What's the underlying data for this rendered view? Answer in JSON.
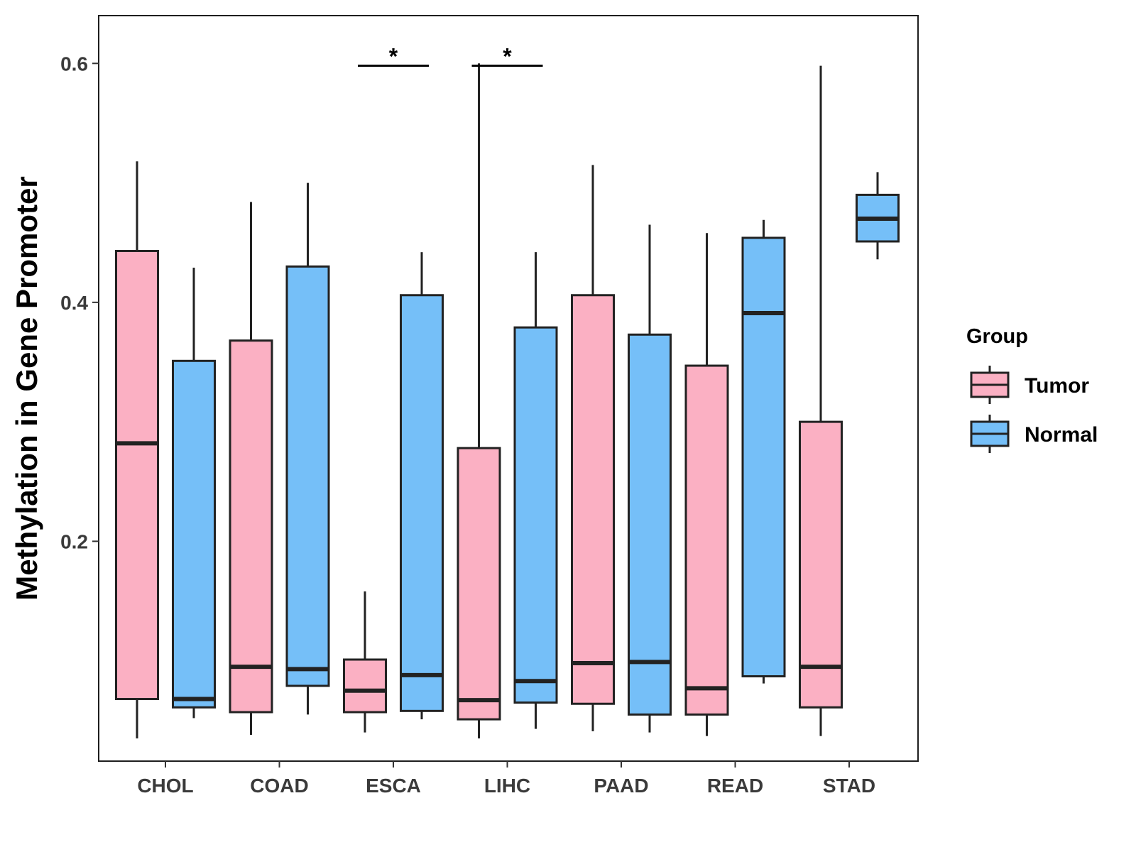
{
  "chart_data": {
    "type": "boxplot",
    "title": "",
    "xlabel": "",
    "ylabel": "Methylation in Gene Promoter",
    "ylim": [
      0.016,
      0.64
    ],
    "yticks": [
      0.2,
      0.4,
      0.6
    ],
    "ytick_labels": [
      "0.2",
      "0.4",
      "0.6"
    ],
    "categories": [
      "CHOL",
      "COAD",
      "ESCA",
      "LIHC",
      "PAAD",
      "READ",
      "STAD"
    ],
    "legend": {
      "title": "Group",
      "position": "right",
      "entries": [
        {
          "name": "Tumor",
          "color": "#FBB0C3"
        },
        {
          "name": "Normal",
          "color": "#75BFF8"
        }
      ]
    },
    "series": [
      {
        "name": "Tumor",
        "color": "#FBB0C3",
        "boxes": [
          {
            "category": "CHOL",
            "min": 0.035,
            "q1": 0.068,
            "median": 0.282,
            "q3": 0.443,
            "max": 0.518
          },
          {
            "category": "COAD",
            "min": 0.038,
            "q1": 0.057,
            "median": 0.095,
            "q3": 0.368,
            "max": 0.484
          },
          {
            "category": "ESCA",
            "min": 0.04,
            "q1": 0.057,
            "median": 0.075,
            "q3": 0.101,
            "max": 0.158
          },
          {
            "category": "LIHC",
            "min": 0.035,
            "q1": 0.051,
            "median": 0.067,
            "q3": 0.278,
            "max": 0.6
          },
          {
            "category": "PAAD",
            "min": 0.041,
            "q1": 0.064,
            "median": 0.098,
            "q3": 0.406,
            "max": 0.515
          },
          {
            "category": "READ",
            "min": 0.037,
            "q1": 0.055,
            "median": 0.077,
            "q3": 0.347,
            "max": 0.458
          },
          {
            "category": "STAD",
            "min": 0.037,
            "q1": 0.061,
            "median": 0.095,
            "q3": 0.3,
            "max": 0.598
          }
        ]
      },
      {
        "name": "Normal",
        "color": "#75BFF8",
        "boxes": [
          {
            "category": "CHOL",
            "min": 0.052,
            "q1": 0.061,
            "median": 0.068,
            "q3": 0.351,
            "max": 0.429
          },
          {
            "category": "COAD",
            "min": 0.055,
            "q1": 0.079,
            "median": 0.093,
            "q3": 0.43,
            "max": 0.5
          },
          {
            "category": "ESCA",
            "min": 0.051,
            "q1": 0.058,
            "median": 0.088,
            "q3": 0.406,
            "max": 0.442
          },
          {
            "category": "LIHC",
            "min": 0.043,
            "q1": 0.065,
            "median": 0.083,
            "q3": 0.379,
            "max": 0.442
          },
          {
            "category": "PAAD",
            "min": 0.04,
            "q1": 0.055,
            "median": 0.099,
            "q3": 0.373,
            "max": 0.465
          },
          {
            "category": "READ",
            "min": 0.081,
            "q1": 0.087,
            "median": 0.391,
            "q3": 0.454,
            "max": 0.469
          },
          {
            "category": "STAD",
            "min": 0.436,
            "q1": 0.451,
            "median": 0.47,
            "q3": 0.49,
            "max": 0.509
          }
        ]
      }
    ],
    "annotations": [
      {
        "category": "ESCA",
        "label": "*",
        "y": 0.598
      },
      {
        "category": "LIHC",
        "label": "*",
        "y": 0.598
      }
    ]
  }
}
